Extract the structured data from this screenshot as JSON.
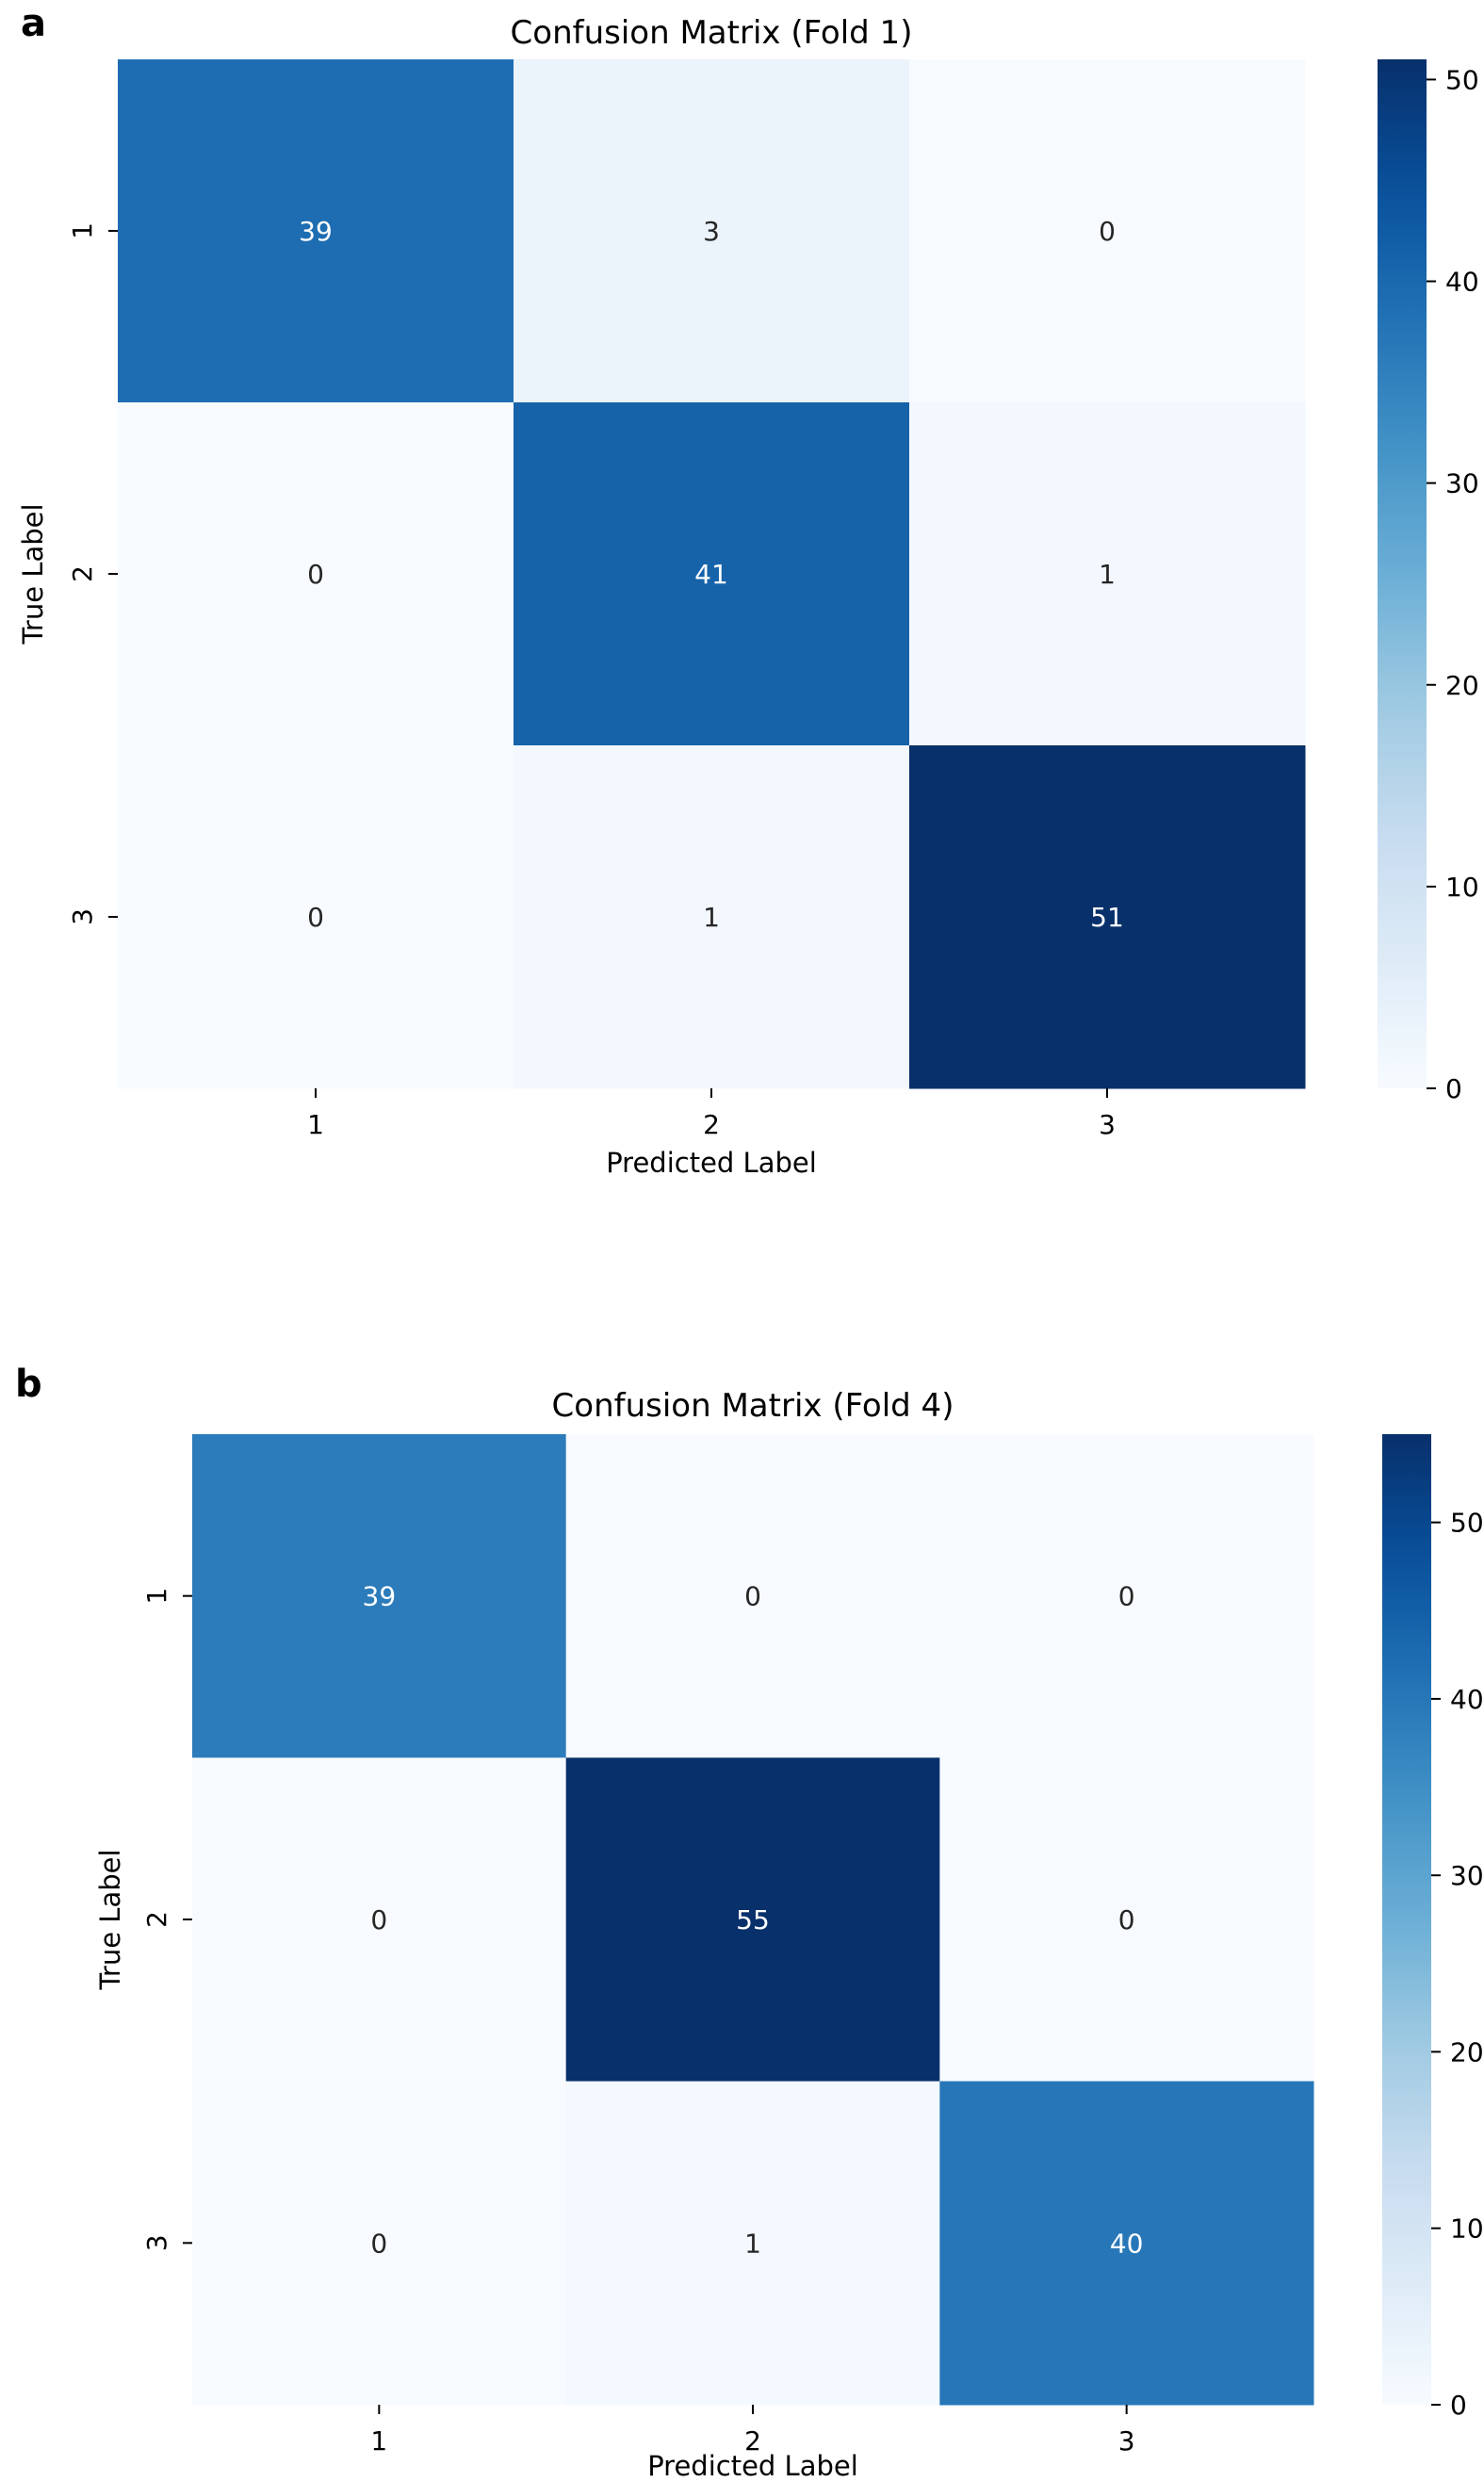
{
  "panels": [
    "a",
    "b"
  ],
  "chart_data": [
    {
      "type": "heatmap",
      "panel_label": "a",
      "title": "Confusion Matrix (Fold 1)",
      "xlabel": "Predicted Label",
      "ylabel": "True Label",
      "x_categories": [
        "1",
        "2",
        "3"
      ],
      "y_categories": [
        "1",
        "2",
        "3"
      ],
      "values": [
        [
          39,
          3,
          0
        ],
        [
          0,
          41,
          1
        ],
        [
          0,
          1,
          51
        ]
      ],
      "colorbar": {
        "min": 0,
        "max": 51,
        "ticks": [
          0,
          10,
          20,
          30,
          40,
          50
        ]
      },
      "colormap": "Blues"
    },
    {
      "type": "heatmap",
      "panel_label": "b",
      "title": "Confusion Matrix (Fold 4)",
      "xlabel": "Predicted Label",
      "ylabel": "True Label",
      "x_categories": [
        "1",
        "2",
        "3"
      ],
      "y_categories": [
        "1",
        "2",
        "3"
      ],
      "values": [
        [
          39,
          0,
          0
        ],
        [
          0,
          55,
          0
        ],
        [
          0,
          1,
          40
        ]
      ],
      "colorbar": {
        "min": 0,
        "max": 55,
        "ticks": [
          0,
          10,
          20,
          30,
          40,
          50
        ]
      },
      "colormap": "Blues"
    }
  ],
  "colors": {
    "blues": [
      "#f7fbff",
      "#deebf7",
      "#c6dbef",
      "#9ecae1",
      "#6baed6",
      "#4292c6",
      "#2171b5",
      "#08519c",
      "#08306b"
    ],
    "text_light": "#ffffff",
    "text_dark": "#262626",
    "axis": "#000000"
  }
}
